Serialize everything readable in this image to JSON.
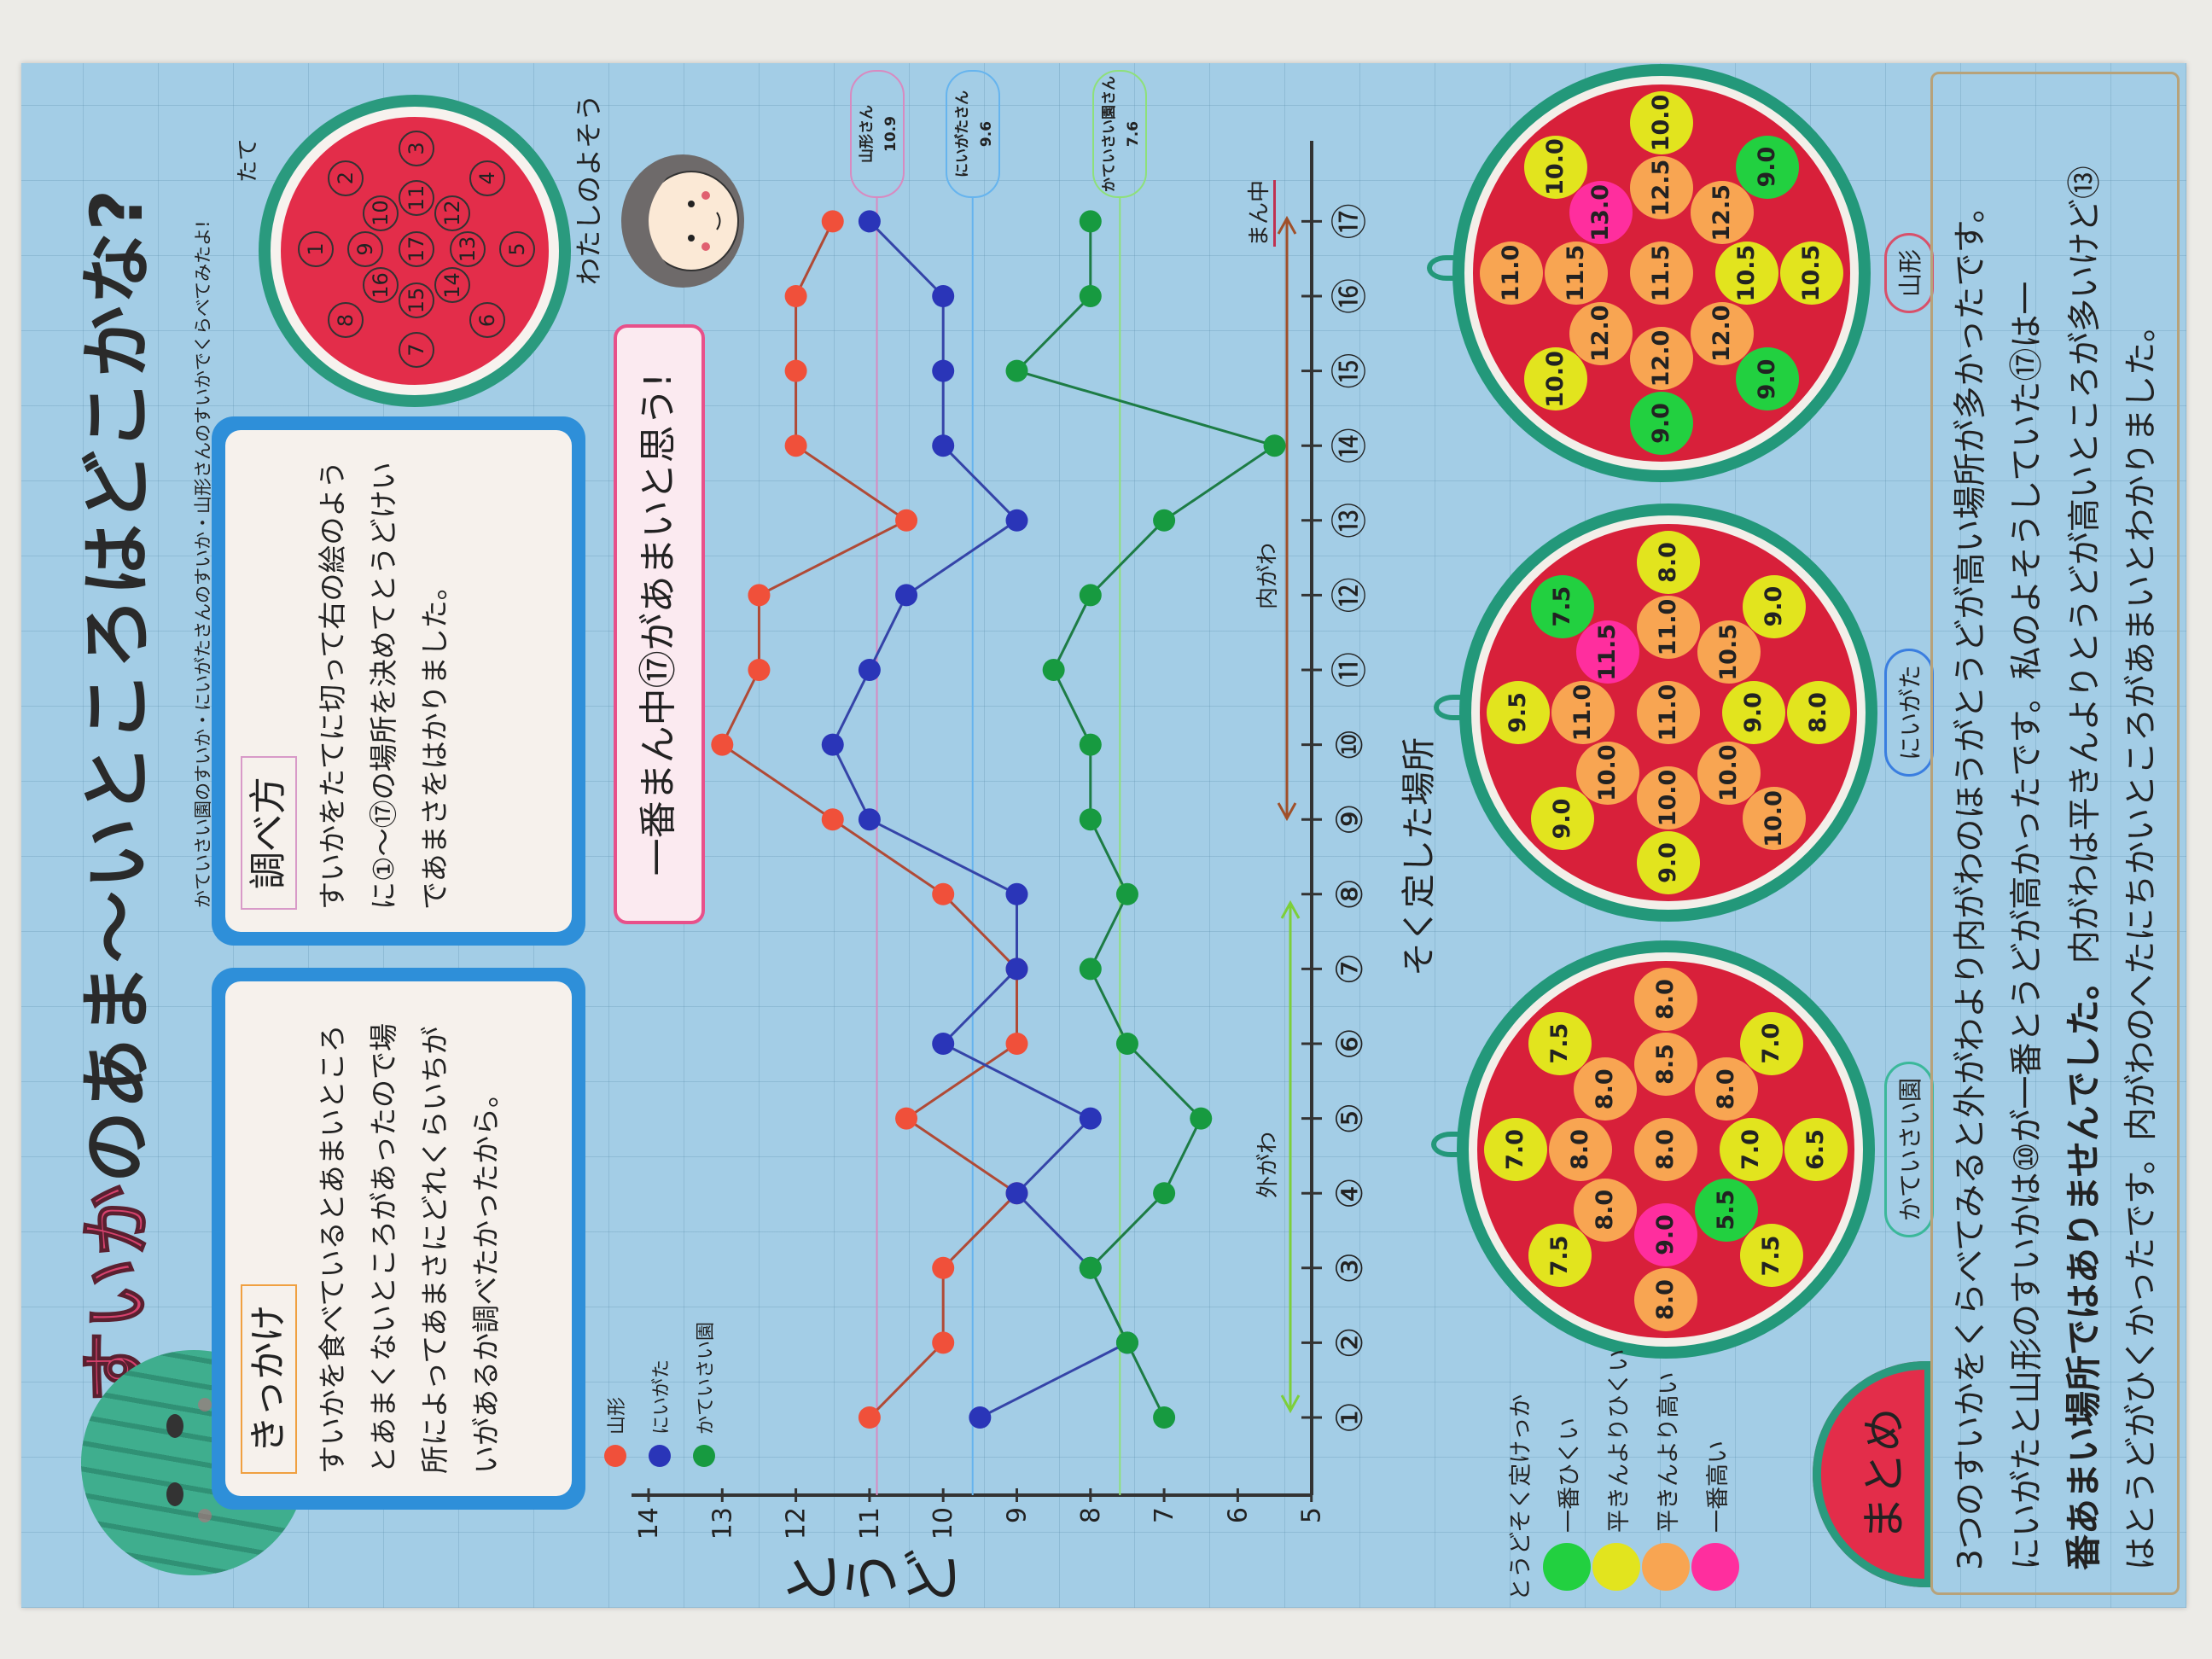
{
  "title": {
    "accent": "すいか",
    "rest": "のあま〜いところはどこかな?"
  },
  "subtitle": "かていさい園のすいか・にいがたさんのすいか・山形さんのすいかでくらべてみたよ!",
  "kikkake": {
    "heading": "きっかけ",
    "body": "すいかを食べているとあまいところとあまくないところがあったので場所によってあまさにどれくらいちがいがあるか調べたかったから。"
  },
  "method": {
    "heading": "調べ方",
    "body": "すいかをたてに切って右の絵のように①〜⑰の場所を決めてとうどけいであまさをはかりました。"
  },
  "diagram": {
    "label": "たて"
  },
  "prediction": {
    "label": "わたしのよそう",
    "bubble": "一番まん中⑰があまいと思う!"
  },
  "chart_data": {
    "type": "line",
    "title": "",
    "xlabel": "そく定した場所",
    "ylabel": "とうど",
    "ylim": [
      5,
      14
    ],
    "yticks": [
      5,
      6,
      7,
      8,
      9,
      10,
      11,
      12,
      13,
      14
    ],
    "categories": [
      "①",
      "②",
      "③",
      "④",
      "⑤",
      "⑥",
      "⑦",
      "⑧",
      "⑨",
      "⑩",
      "⑪",
      "⑫",
      "⑬",
      "⑭",
      "⑮",
      "⑯",
      "⑰"
    ],
    "grid": true,
    "legend_position": "top-left",
    "series": [
      {
        "name": "山形",
        "color": "#f0503a",
        "line_color": "#b04a36",
        "values": [
          11.0,
          10.0,
          10.0,
          9.0,
          10.5,
          9.0,
          9.0,
          10.0,
          11.5,
          13.0,
          12.5,
          12.5,
          10.5,
          12.0,
          12.0,
          12.0,
          11.5
        ]
      },
      {
        "name": "にいがた",
        "color": "#2a35b8",
        "line_color": "#3544a8",
        "values": [
          9.5,
          7.5,
          8.0,
          9.0,
          8.0,
          10.0,
          9.0,
          9.0,
          11.0,
          11.5,
          11.0,
          10.5,
          9.0,
          10.0,
          10.0,
          10.0,
          11.0
        ]
      },
      {
        "name": "かていさい園",
        "color": "#179a40",
        "line_color": "#1d7c45",
        "values": [
          7.0,
          7.5,
          8.0,
          7.0,
          6.5,
          7.5,
          8.0,
          7.5,
          8.0,
          8.0,
          8.5,
          8.0,
          7.0,
          5.5,
          9.0,
          8.0,
          8.0
        ]
      }
    ],
    "averages": [
      {
        "label": "山形さん",
        "value": 10.9,
        "color": "#d88ac0"
      },
      {
        "label": "にいがたさん",
        "value": 9.6,
        "color": "#66b4ee"
      },
      {
        "label": "かていさい園さん",
        "value": 7.6,
        "color": "#8ee07a"
      }
    ],
    "annotations": {
      "outer": "外がわ",
      "inner": "内がわ",
      "center": "まん中"
    }
  },
  "levels": {
    "low": "#22d040",
    "below": "#e2e41e",
    "above": "#f8a552",
    "high": "#ff2e9e"
  },
  "melons": [
    {
      "label": "かていさい園",
      "ring": "#3bb89a",
      "stickers": [
        {
          "v": "7.0",
          "l": "below"
        },
        {
          "v": "7.5",
          "l": "below"
        },
        {
          "v": "8.0",
          "l": "above"
        },
        {
          "v": "7.0",
          "l": "below"
        },
        {
          "v": "6.5",
          "l": "below"
        },
        {
          "v": "7.5",
          "l": "below"
        },
        {
          "v": "8.0",
          "l": "above"
        },
        {
          "v": "7.5",
          "l": "below"
        },
        {
          "v": "8.0",
          "l": "above"
        },
        {
          "v": "8.0",
          "l": "above"
        },
        {
          "v": "8.5",
          "l": "above"
        },
        {
          "v": "8.0",
          "l": "above"
        },
        {
          "v": "7.0",
          "l": "below"
        },
        {
          "v": "5.5",
          "l": "low"
        },
        {
          "v": "9.0",
          "l": "high"
        },
        {
          "v": "8.0",
          "l": "above"
        },
        {
          "v": "8.0",
          "l": "above"
        }
      ]
    },
    {
      "label": "にいがた",
      "ring": "#3a7ee0",
      "stickers": [
        {
          "v": "9.5",
          "l": "below"
        },
        {
          "v": "7.5",
          "l": "low"
        },
        {
          "v": "8.0",
          "l": "below"
        },
        {
          "v": "9.0",
          "l": "below"
        },
        {
          "v": "8.0",
          "l": "below"
        },
        {
          "v": "10.0",
          "l": "above"
        },
        {
          "v": "9.0",
          "l": "below"
        },
        {
          "v": "9.0",
          "l": "below"
        },
        {
          "v": "11.0",
          "l": "above"
        },
        {
          "v": "11.5",
          "l": "high"
        },
        {
          "v": "11.0",
          "l": "above"
        },
        {
          "v": "10.5",
          "l": "above"
        },
        {
          "v": "9.0",
          "l": "below"
        },
        {
          "v": "10.0",
          "l": "above"
        },
        {
          "v": "10.0",
          "l": "above"
        },
        {
          "v": "10.0",
          "l": "above"
        },
        {
          "v": "11.0",
          "l": "above"
        }
      ]
    },
    {
      "label": "山形",
      "ring": "#d8506a",
      "stickers": [
        {
          "v": "11.0",
          "l": "above"
        },
        {
          "v": "10.0",
          "l": "below"
        },
        {
          "v": "10.0",
          "l": "below"
        },
        {
          "v": "9.0",
          "l": "low"
        },
        {
          "v": "10.5",
          "l": "below"
        },
        {
          "v": "9.0",
          "l": "low"
        },
        {
          "v": "9.0",
          "l": "low"
        },
        {
          "v": "10.0",
          "l": "below"
        },
        {
          "v": "11.5",
          "l": "above"
        },
        {
          "v": "13.0",
          "l": "high"
        },
        {
          "v": "12.5",
          "l": "above"
        },
        {
          "v": "12.5",
          "l": "above"
        },
        {
          "v": "10.5",
          "l": "below"
        },
        {
          "v": "12.0",
          "l": "above"
        },
        {
          "v": "12.0",
          "l": "above"
        },
        {
          "v": "12.0",
          "l": "above"
        },
        {
          "v": "11.5",
          "l": "above"
        }
      ]
    }
  ],
  "color_key": {
    "heading": "とうどそく定けっか",
    "items": [
      {
        "label": "一番ひくい",
        "level": "low"
      },
      {
        "label": "平きんよりひくい",
        "level": "below"
      },
      {
        "label": "平きんより高い",
        "level": "above"
      },
      {
        "label": "一番高い",
        "level": "high"
      }
    ]
  },
  "summary": {
    "label": "まとめ",
    "line1": "3つのすいかをくらべてみると外がわより内がわのほうがとうどが高い場所が多かったです。",
    "line2": "にいがたと山形のすいかは⑩が一番とうどが高かったです。私のよそうしていた⑰は一",
    "line3_bold": "番あまい場所ではありませんでした。",
    "line3_rest": "内がわは平きんよりとうどが高いところが多いけど⑬",
    "line4": "はとうどがひくかったです。内がわのへたにちかいところがあまいとわかりました。"
  }
}
